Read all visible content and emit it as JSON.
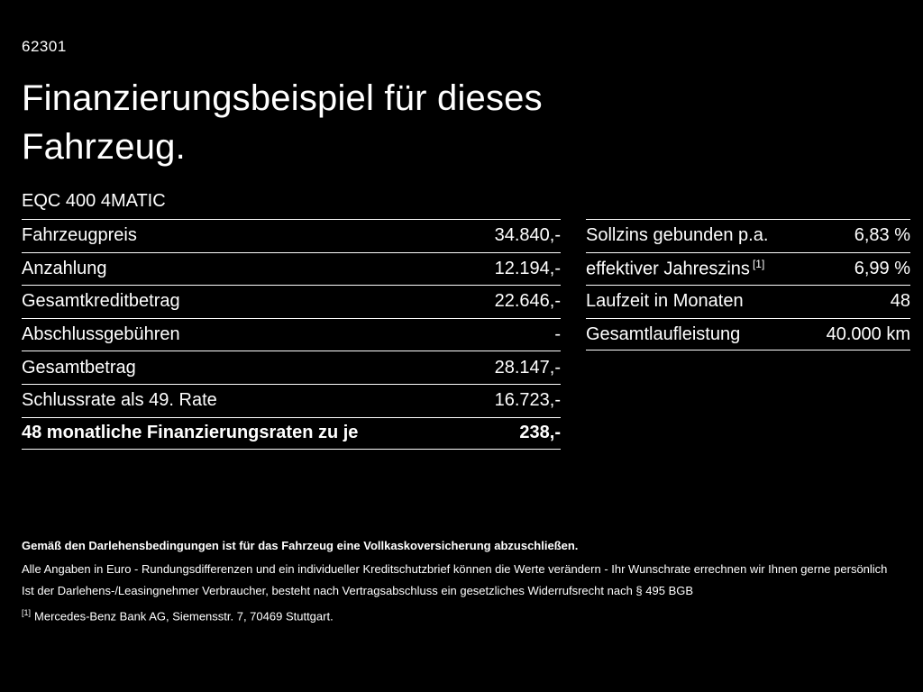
{
  "page": {
    "code": "62301",
    "title": "Finanzierungsbeispiel für dieses Fahrzeug.",
    "model": "EQC 400 4MATIC"
  },
  "left_table": {
    "rows": [
      {
        "label": "Fahrzeugpreis",
        "value": "34.840,-"
      },
      {
        "label": "Anzahlung",
        "value": "12.194,-"
      },
      {
        "label": "Gesamtkreditbetrag",
        "value": "22.646,-"
      },
      {
        "label": "Abschlussgebühren",
        "value": "-"
      },
      {
        "label": "Gesamtbetrag",
        "value": "28.147,-"
      },
      {
        "label": "Schlussrate als 49. Rate",
        "value": "16.723,-"
      },
      {
        "label": "48 monatliche Finanzierungsraten zu je",
        "value": "238,-"
      }
    ]
  },
  "right_table": {
    "rows": [
      {
        "label": "Sollzins gebunden p.a.",
        "value": "6,83 %"
      },
      {
        "label": "effektiver Jahreszins",
        "sup": "[1]",
        "value": "6,99 %"
      },
      {
        "label": "Laufzeit in Monaten",
        "value": "48"
      },
      {
        "label": "Gesamtlaufleistung",
        "value": "40.000 km"
      }
    ]
  },
  "footer": {
    "insurance_note": "Gemäß den Darlehensbedingungen ist für das Fahrzeug eine Vollkaskoversicherung abzuschließen.",
    "note1": "Alle Angaben in Euro - Rundungsdifferenzen und ein individueller Kreditschutzbrief können die Werte verändern - Ihr Wunschrate errechnen wir Ihnen gerne persönlich",
    "note2": "Ist der Darlehens-/Leasingnehmer Verbraucher, besteht nach Vertragsabschluss ein gesetzliches Widerrufsrecht nach § 495 BGB",
    "footnote_marker": "[1]",
    "footnote_text": "Mercedes-Benz Bank AG, Siemensstr. 7, 70469 Stuttgart."
  },
  "colors": {
    "background": "#000000",
    "text": "#ffffff"
  }
}
